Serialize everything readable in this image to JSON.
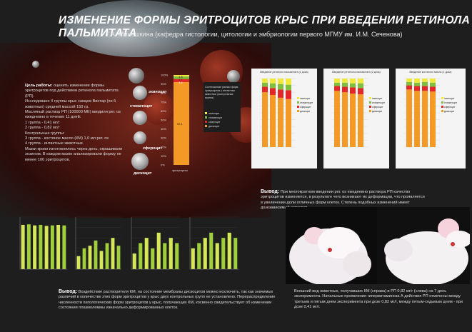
{
  "title": "ИЗМЕНЕНИЕ ФОРМЫ ЭРИТРОЦИТОВ КРЫС ПРИ ВВЕДЕНИИ РЕТИНОЛА ПАЛЬМИТАТА",
  "authors": "Т.А. Миношкина (кафедра гистологии, цитологии и эмбриологии первого МГМУ им. И.М. Сеченова)",
  "goal": {
    "label": "Цель работы:",
    "text": "оценить изменение формы эритроцитов под действием ретинола пальмитата (РП).",
    "p1": "Исследовано 4 группы крыс самцов Вистар (по 6 животных) средней массой 150 гр.",
    "p2": "Масляный раствор РП (100000 МЕ) вводили рег. os ежедневно в течение 11 дней:",
    "groups": [
      "1 группа - 0,41 мг/г",
      "2 группа - 0,82 мг/г",
      "Контрольные группы:",
      "3 группа - костяное масло (КМ) 1,0 мл рег. os",
      "4 группа - интактные животные."
    ],
    "p3": "Мазки крови изготовлялись через день, окрашивали эозином. В каждом мазке анализировали форму не менее 100 эритроцитов."
  },
  "cell_types": [
    "эхиноцит",
    "стоматоцит",
    "сфероцит",
    "дискоцит"
  ],
  "main_chart": {
    "legend_title": "Соотношение разных форм эритроцитов у интактных животных (контрольная группа)",
    "legend": [
      "эхиноцит",
      "стоматоцит",
      "сфероцит",
      "дискоцит"
    ],
    "xlabel": "эритроциты",
    "ticks": [
      "100%",
      "90%",
      "80%",
      "70%",
      "60%",
      "50%",
      "40%",
      "30%",
      "20%",
      "10%",
      "0%"
    ],
    "data_labels": [
      "1,8",
      "2,7",
      "3,4",
      "92,1"
    ]
  },
  "right_charts": [
    {
      "title": "Введение ретинола пальмитата (1 доза)",
      "legend": [
        "эхиноцит",
        "стоматоцит",
        "сфероцит",
        "дискоцит"
      ]
    },
    {
      "title": "Введение ретинола пальмитата (2 доза)",
      "legend": [
        "эхиноцит",
        "стоматоцит",
        "сфероцит",
        "дискоцит"
      ]
    },
    {
      "title": "Введение костяного масла (1 доза)",
      "legend": [
        "эхиноцит",
        "стоматоцит",
        "сфероцит",
        "дискоцит"
      ]
    }
  ],
  "conclusion1": {
    "label": "Вывод:",
    "text": "При многократном введении рег. os ежедневно раствора РП качество эритроцитов изменяется, в результате чего возникают их деформации, что проявляется в увеличении доли отличных форм клеток. Степень подобных изменений имеет дозозависимый характер."
  },
  "conclusion2": {
    "label": "Вывод:",
    "text": "Воздействие растворителя КМ, на состояние мембраны дискоцитов можно исключить, так как значимых различий в количестве этих форм эритроцитов у крыс двух контрольных групп не установлено. Перераспределение численности патологических форм эритроцитов у крыс, получающих КМ, косвенно свидетельствует об изменении состояния плазмолеммы изначально деформированных клеток."
  },
  "rats_caption": "Внешний вид животных, получавших КМ (справа) и РП 0,82 мг/г (слева) на 7 день эксперимента. Начальные проявления гипервитаминоза А действия РП отмечены между третьим и пятым днем эксперимента при дозе 0,82 мг/г, между пятым-седьмым днем - при дозе 0,41 мг/г.",
  "chart_data": [
    {
      "type": "bar",
      "title": "",
      "xlabel": "эритроциты",
      "ylabel": "",
      "ylim": [
        0,
        100
      ],
      "categories": [
        "эритроциты"
      ],
      "series": [
        {
          "name": "дискоцит",
          "values": [
            92.1
          ]
        },
        {
          "name": "сфероцит",
          "values": [
            3.4
          ]
        },
        {
          "name": "стоматоцит",
          "values": [
            2.7
          ]
        },
        {
          "name": "эхиноцит",
          "values": [
            1.8
          ]
        }
      ],
      "colors": {
        "дискоцит": "#f39a26",
        "сфероцит": "#e3262a",
        "стоматоцит": "#7fbf3f",
        "эхиноцит": "#f1e83a"
      }
    },
    {
      "type": "bar",
      "title": "Введение ретинола пальмитата (1 доза)",
      "ylim": [
        0,
        100
      ],
      "categories": [
        "1",
        "2",
        "3",
        "4"
      ],
      "series": [
        {
          "name": "дискоцит",
          "values": [
            80,
            76,
            72,
            70
          ]
        },
        {
          "name": "сфероцит",
          "values": [
            8,
            10,
            12,
            13
          ]
        },
        {
          "name": "стоматоцит",
          "values": [
            6,
            7,
            8,
            8
          ]
        },
        {
          "name": "эхиноцит",
          "values": [
            6,
            7,
            8,
            9
          ]
        }
      ]
    },
    {
      "type": "bar",
      "title": "Введение ретинола пальмитата (2 доза)",
      "ylim": [
        0,
        100
      ],
      "categories": [
        "1",
        "2",
        "3",
        "4"
      ],
      "series": [
        {
          "name": "дискоцит",
          "values": [
            82,
            80,
            78,
            77
          ]
        },
        {
          "name": "сфероцит",
          "values": [
            7,
            8,
            9,
            9
          ]
        },
        {
          "name": "стоматоцит",
          "values": [
            5,
            6,
            6,
            7
          ]
        },
        {
          "name": "эхиноцит",
          "values": [
            6,
            6,
            7,
            7
          ]
        }
      ]
    },
    {
      "type": "bar",
      "title": "Введение костяного масла (1 доза)",
      "ylim": [
        0,
        100
      ],
      "categories": [
        "1",
        "2",
        "3",
        "4"
      ],
      "series": [
        {
          "name": "дискоцит",
          "values": [
            84,
            82,
            82,
            81
          ]
        },
        {
          "name": "сфероцит",
          "values": [
            6,
            7,
            7,
            7
          ]
        },
        {
          "name": "стоматоцит",
          "values": [
            5,
            5,
            6,
            6
          ]
        },
        {
          "name": "эхиноцит",
          "values": [
            5,
            6,
            5,
            6
          ]
        }
      ]
    },
    {
      "type": "bar",
      "title": "",
      "ylim": [
        0,
        100
      ],
      "categories": [
        "1",
        "2",
        "3",
        "4",
        "5",
        "6",
        "7",
        "8"
      ],
      "series": [
        {
          "name": "",
          "values": [
            85,
            86,
            84,
            85,
            83,
            84,
            85,
            84
          ]
        }
      ]
    },
    {
      "type": "bar",
      "title": "",
      "ylim": [
        0,
        20
      ],
      "categories": [
        "1",
        "2",
        "3",
        "4",
        "5",
        "6",
        "7",
        "8"
      ],
      "series": [
        {
          "name": "",
          "values": [
            5,
            8,
            9,
            11,
            7,
            10,
            12,
            9
          ]
        }
      ]
    },
    {
      "type": "bar",
      "title": "",
      "ylim": [
        0,
        10
      ],
      "categories": [
        "1",
        "2",
        "3",
        "4",
        "5",
        "6",
        "7",
        "8"
      ],
      "series": [
        {
          "name": "",
          "values": [
            3,
            5,
            6,
            4,
            7,
            5,
            6,
            5
          ]
        }
      ]
    },
    {
      "type": "bar",
      "title": "",
      "ylim": [
        0,
        10
      ],
      "categories": [
        "1",
        "2",
        "3",
        "4",
        "5",
        "6",
        "7",
        "8"
      ],
      "series": [
        {
          "name": "",
          "values": [
            4,
            5,
            6,
            7,
            5,
            6,
            7,
            6
          ]
        }
      ]
    }
  ]
}
